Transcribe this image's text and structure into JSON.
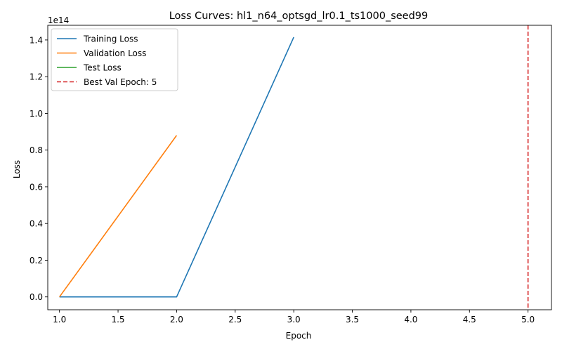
{
  "chart_data": {
    "type": "line",
    "title": "Loss Curves: hl1_n64_optsgd_lr0.1_ts1000_seed99",
    "xlabel": "Epoch",
    "ylabel": "Loss",
    "y_offset_label": "1e14",
    "xlim": [
      0.9,
      5.2
    ],
    "ylim": [
      -0.07,
      1.48
    ],
    "y_multiplier": 100000000000000.0,
    "x_ticks": [
      1.0,
      1.5,
      2.0,
      2.5,
      3.0,
      3.5,
      4.0,
      4.5,
      5.0
    ],
    "x_tick_labels": [
      "1.0",
      "1.5",
      "2.0",
      "2.5",
      "3.0",
      "3.5",
      "4.0",
      "4.5",
      "5.0"
    ],
    "y_ticks": [
      0.0,
      0.2,
      0.4,
      0.6,
      0.8,
      1.0,
      1.2,
      1.4
    ],
    "y_tick_labels": [
      "0.0",
      "0.2",
      "0.4",
      "0.6",
      "0.8",
      "1.0",
      "1.2",
      "1.4"
    ],
    "grid": false,
    "legend_position": "upper-left",
    "series": [
      {
        "name": "Training Loss",
        "color": "#1f77b4",
        "x": [
          1,
          2,
          3
        ],
        "y": [
          0.0,
          0.0,
          1.415
        ]
      },
      {
        "name": "Validation Loss",
        "color": "#ff7f0e",
        "x": [
          1,
          2
        ],
        "y": [
          0.0,
          0.88
        ]
      },
      {
        "name": "Test Loss",
        "color": "#2ca02c",
        "x": [],
        "y": []
      }
    ],
    "vlines": [
      {
        "name": "Best Val Epoch: 5",
        "x": 5,
        "color": "#d62728",
        "style": "dashed"
      }
    ]
  }
}
